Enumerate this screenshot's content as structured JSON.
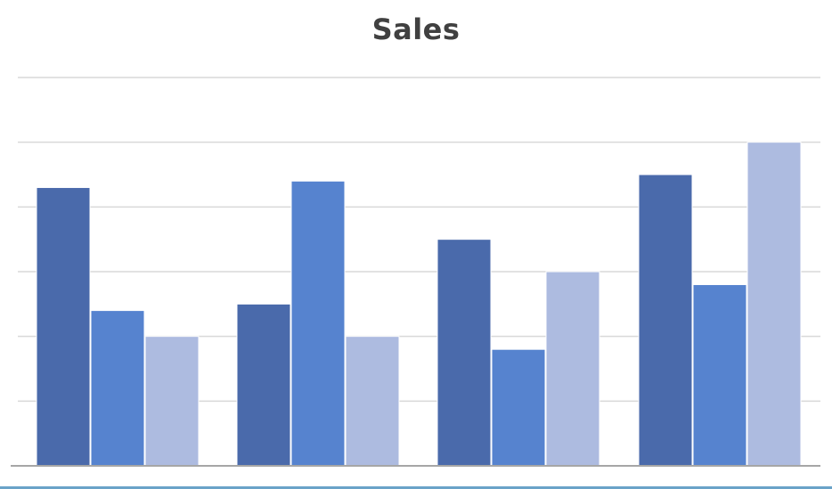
{
  "chart_data": {
    "type": "bar",
    "title": "Sales",
    "xlabel": "",
    "ylabel": "",
    "categories": [
      "",
      "",
      "",
      ""
    ],
    "ylim": [
      0,
      6
    ],
    "grid": true,
    "series": [
      {
        "values": [
          4.3,
          2.5,
          3.5,
          4.5
        ]
      },
      {
        "values": [
          2.4,
          4.4,
          1.8,
          2.8
        ]
      },
      {
        "values": [
          2.0,
          2.0,
          3.0,
          5.0
        ]
      }
    ],
    "colors": [
      "#4a6aab",
      "#5683cf",
      "#adbbe0"
    ]
  }
}
